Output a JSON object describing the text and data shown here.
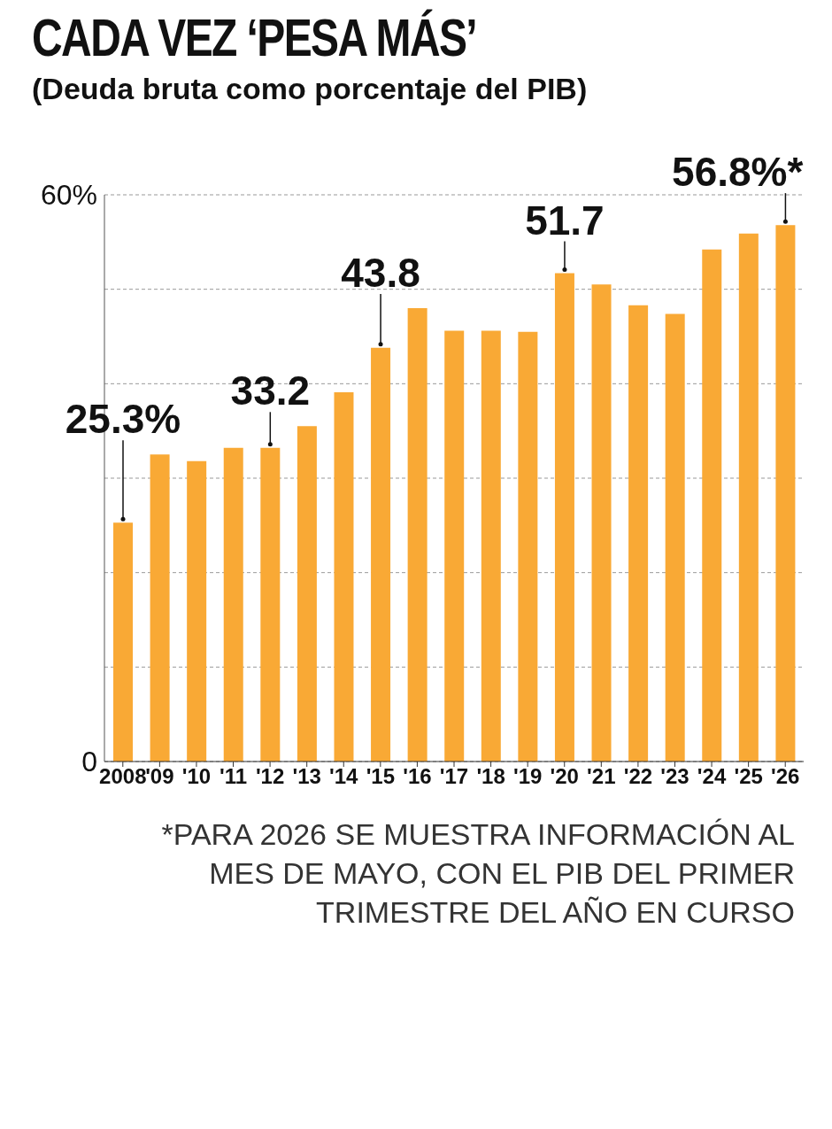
{
  "chart_data": {
    "type": "bar",
    "title": "CADA VEZ ‘PESA MÁS’",
    "subtitle": "(Deuda bruta como porcentaje del PIB)",
    "categories": [
      "2008",
      "'09",
      "'10",
      "'11",
      "'12",
      "'13",
      "'14",
      "'15",
      "'16",
      "'17",
      "'18",
      "'19",
      "'20",
      "'21",
      "'22",
      "'23",
      "'24",
      "'25",
      "'26"
    ],
    "values": [
      25.3,
      32.5,
      31.8,
      33.2,
      33.2,
      35.5,
      39.1,
      43.8,
      48.0,
      45.6,
      45.6,
      45.5,
      51.7,
      50.5,
      48.3,
      47.4,
      54.2,
      55.9,
      56.8
    ],
    "value_labels": [
      "25.3%",
      null,
      null,
      null,
      "33.2",
      null,
      null,
      "43.8",
      null,
      null,
      null,
      null,
      "51.7",
      null,
      null,
      null,
      null,
      null,
      "56.8%*"
    ],
    "color": "#f9a935",
    "ylim": [
      0,
      60
    ],
    "yticks": [
      0,
      {
        "value": 10,
        "label": null
      },
      {
        "value": 20,
        "label": null
      },
      {
        "value": 30,
        "label": null
      },
      {
        "value": 40,
        "label": null
      },
      {
        "value": 50,
        "label": null
      },
      {
        "value": 60,
        "label": "60%"
      }
    ],
    "grid": "y",
    "annotations": [
      "*PARA 2026 SE MUESTRA INFORMACIÓN AL MES DE MAYO, CON EL PIB DEL PRIMER TRIMESTRE DEL AÑO EN CURSO"
    ]
  }
}
